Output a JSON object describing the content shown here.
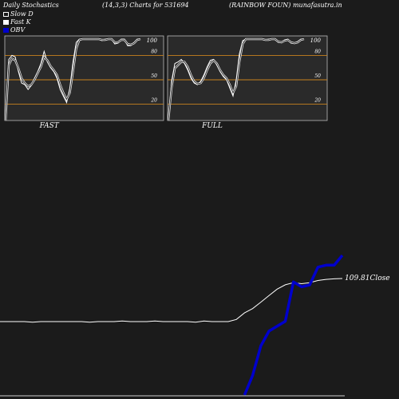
{
  "header": {
    "title": "Daily Stochastics",
    "params": "(14,3,3) Charts for 531694",
    "site": "(RAINBOW FOUN) munafasutra.in"
  },
  "legend": [
    {
      "label": "Slow  D",
      "color": "#ffffff"
    },
    {
      "label": "Fast K",
      "color": "#ffffff"
    },
    {
      "label": "OBV",
      "color": "#0000cc"
    }
  ],
  "colors": {
    "background": "#1b1b1b",
    "panel": "#2a2a2a",
    "level": "#c8821e",
    "line": "#ffffff",
    "obv": "#0000cc"
  },
  "chart_data": [
    {
      "type": "line",
      "title": "FAST",
      "ylim": [
        0,
        100
      ],
      "y_ticks": [
        "100",
        "80",
        "50",
        "20"
      ],
      "levels": [
        80,
        50,
        20
      ],
      "series": [
        {
          "name": "Fast K",
          "values": [
            0,
            75,
            80,
            78,
            60,
            46,
            44,
            38,
            43,
            52,
            60,
            70,
            85,
            72,
            65,
            60,
            52,
            38,
            30,
            22,
            40,
            72,
            96,
            100,
            100,
            100,
            100,
            100,
            100,
            100,
            98,
            100,
            100,
            100,
            94,
            95,
            100,
            100,
            92,
            92,
            96,
            100,
            100
          ]
        },
        {
          "name": "Slow D",
          "values": [
            0,
            68,
            76,
            74,
            64,
            52,
            46,
            42,
            44,
            50,
            58,
            66,
            78,
            74,
            67,
            62,
            56,
            44,
            34,
            26,
            34,
            60,
            88,
            99,
            100,
            100,
            100,
            100,
            100,
            100,
            99,
            99,
            100,
            100,
            96,
            96,
            99,
            99,
            94,
            93,
            95,
            99,
            100
          ]
        }
      ]
    },
    {
      "type": "line",
      "title": "FULL",
      "ylim": [
        0,
        100
      ],
      "y_ticks": [
        "100",
        "80",
        "50",
        "20"
      ],
      "levels": [
        80,
        50,
        20
      ],
      "series": [
        {
          "name": "Fast K",
          "values": [
            0,
            48,
            70,
            72,
            75,
            70,
            62,
            52,
            46,
            44,
            48,
            56,
            66,
            74,
            75,
            68,
            60,
            54,
            50,
            40,
            30,
            50,
            82,
            98,
            100,
            100,
            100,
            100,
            100,
            100,
            99,
            100,
            100,
            100,
            96,
            96,
            99,
            100,
            95,
            95,
            97,
            100,
            100
          ]
        },
        {
          "name": "Slow D",
          "values": [
            0,
            40,
            64,
            68,
            72,
            72,
            66,
            56,
            48,
            45,
            46,
            52,
            62,
            70,
            74,
            70,
            62,
            56,
            52,
            44,
            34,
            42,
            72,
            94,
            100,
            100,
            100,
            100,
            100,
            100,
            99,
            99,
            100,
            100,
            97,
            96,
            98,
            99,
            96,
            95,
            96,
            99,
            100
          ]
        }
      ]
    },
    {
      "type": "line",
      "close_label": "109.81Close",
      "series": [
        {
          "name": "Close",
          "values": [
            70,
            70,
            70,
            70,
            69.5,
            70,
            70,
            70,
            70,
            70,
            70,
            69.5,
            70,
            70,
            70,
            70.5,
            70,
            70,
            70,
            70.5,
            70,
            70,
            70,
            70,
            69.5,
            70.5,
            70,
            70,
            70,
            72,
            78,
            82,
            88,
            94,
            100,
            104,
            106,
            105,
            106,
            108,
            109,
            109.5,
            109.81
          ]
        },
        {
          "name": "OBV",
          "values": [
            null,
            null,
            null,
            null,
            null,
            null,
            null,
            null,
            null,
            null,
            null,
            null,
            null,
            null,
            null,
            null,
            null,
            null,
            null,
            null,
            null,
            null,
            null,
            null,
            null,
            null,
            null,
            null,
            null,
            null,
            -20,
            0,
            30,
            45,
            50,
            55,
            95,
            90,
            92,
            110,
            112,
            112,
            122
          ]
        }
      ]
    }
  ]
}
